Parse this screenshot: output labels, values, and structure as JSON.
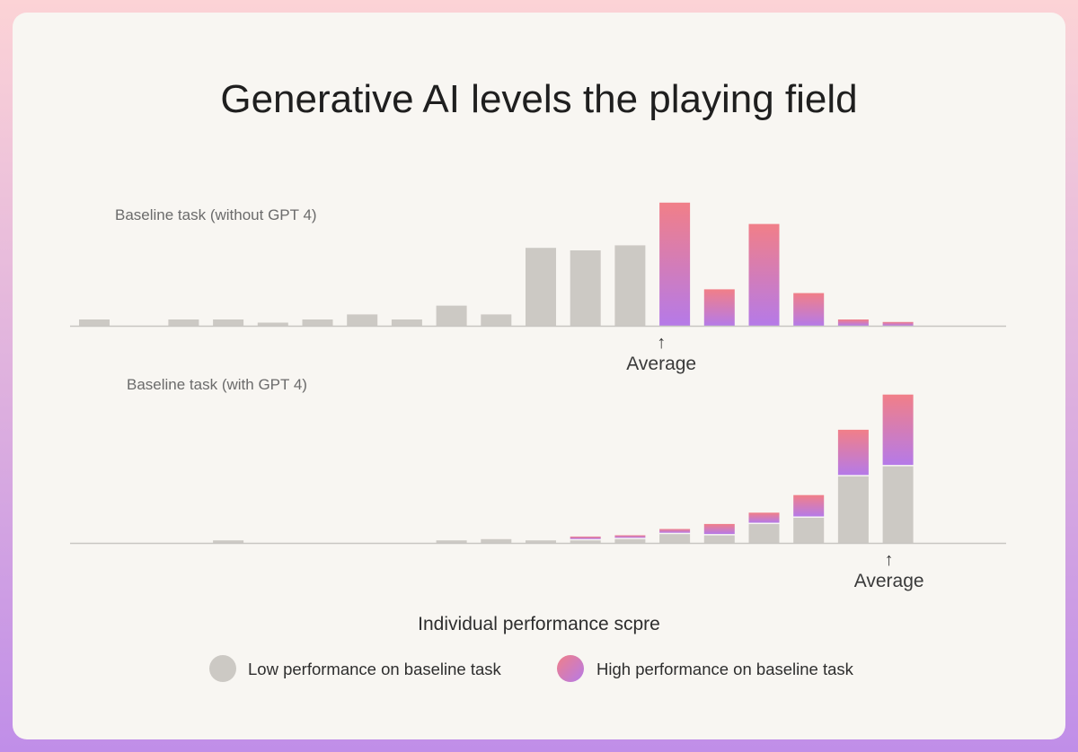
{
  "chart_data": {
    "type": "bar",
    "title": "Generative AI levels the playing field",
    "xlabel": "Individual performance scpre",
    "bins": 19,
    "legend": {
      "placement": "bottom",
      "items": [
        {
          "name": "Low performance on baseline task",
          "color": "#ccc9c4"
        },
        {
          "name": "High performance on baseline task",
          "gradient": [
            "#f17f88",
            "#b57ae8"
          ]
        }
      ]
    },
    "panels": [
      {
        "label": "Baseline task (without GPT 4)",
        "average_label": "Average",
        "average_bin": 12.7,
        "series": [
          {
            "name": "Low performance on baseline task",
            "values": [
              0.5,
              0,
              0.5,
              0.5,
              0.25,
              0.5,
              0.9,
              0.5,
              1.6,
              0.9,
              6.2,
              6.0,
              6.4,
              0,
              0,
              0,
              0,
              0,
              0
            ]
          },
          {
            "name": "High performance on baseline task",
            "values": [
              0,
              0,
              0,
              0,
              0,
              0,
              0,
              0,
              0,
              0,
              0,
              0,
              0,
              9.8,
              2.9,
              8.1,
              2.6,
              0.5,
              0.3
            ]
          }
        ]
      },
      {
        "label": "Baseline task (with GPT 4)",
        "average_label": "Average",
        "average_bin": 17.8,
        "series": [
          {
            "name": "Low performance on baseline task",
            "values": [
              0,
              0,
              0,
              0.2,
              0,
              0,
              0,
              0,
              0.2,
              0.3,
              0.2,
              0.2,
              0.3,
              0.7,
              0.6,
              1.5,
              2.0,
              5.3,
              6.1
            ]
          },
          {
            "name": "High performance on baseline task",
            "values": [
              0,
              0,
              0,
              0,
              0,
              0,
              0,
              0,
              0,
              0,
              0,
              0.2,
              0.2,
              0.3,
              0.8,
              0.8,
              1.7,
              3.6,
              5.6
            ]
          }
        ]
      }
    ]
  }
}
